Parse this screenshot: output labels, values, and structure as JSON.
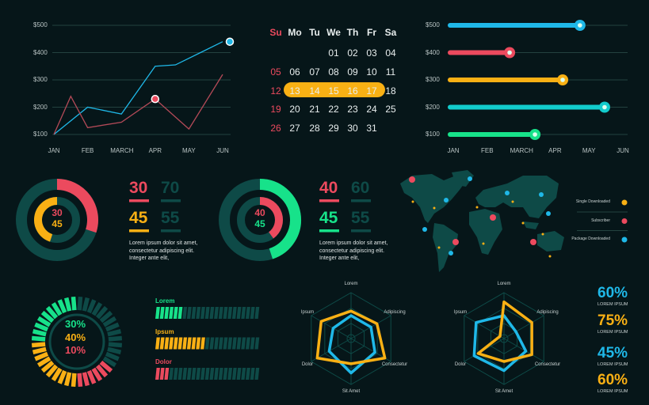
{
  "colors": {
    "bg": "#061619",
    "red": "#ec4a5e",
    "yellow": "#f9b014",
    "blue": "#1fb8e8",
    "teal": "#12cccc",
    "green": "#17e28a",
    "dark": "#0e4a47",
    "grid": "#23423f"
  },
  "line_chart": {
    "y_ticks": [
      "$500",
      "$400",
      "$300",
      "$200",
      "$100"
    ],
    "x_ticks": [
      "JAN",
      "FEB",
      "MARCH",
      "APR",
      "MAY",
      "JUN"
    ],
    "series": [
      {
        "name": "blue",
        "color": "#1fb8e8",
        "x": [
          0,
          1,
          2,
          3,
          3.6,
          5
        ],
        "y": [
          100,
          200,
          175,
          350,
          355,
          440
        ]
      },
      {
        "name": "red",
        "color": "#b44a58",
        "x": [
          0,
          0.5,
          1,
          2,
          3,
          4,
          5
        ],
        "y": [
          100,
          240,
          125,
          145,
          230,
          120,
          320
        ]
      }
    ]
  },
  "calendar": {
    "weekdays": [
      "Su",
      "Mo",
      "Tu",
      "We",
      "Th",
      "Fr",
      "Sa"
    ],
    "weeks": [
      [
        "",
        "",
        "",
        "01",
        "02",
        "03",
        "04"
      ],
      [
        "05",
        "06",
        "07",
        "08",
        "09",
        "10",
        "11"
      ],
      [
        "12",
        "13",
        "14",
        "15",
        "16",
        "17",
        "18"
      ],
      [
        "19",
        "20",
        "21",
        "22",
        "23",
        "24",
        "25"
      ],
      [
        "26",
        "27",
        "28",
        "29",
        "30",
        "31",
        ""
      ]
    ],
    "highlight": [
      "13",
      "14",
      "15",
      "16",
      "17"
    ]
  },
  "slider_chart": {
    "y_ticks": [
      "$500",
      "$400",
      "$300",
      "$200",
      "$100"
    ],
    "x_ticks": [
      "JAN",
      "FEB",
      "MARCH",
      "APR",
      "MAY",
      "JUN"
    ],
    "bars": [
      {
        "label": "$500",
        "color": "#1fb8e8",
        "fraction": 0.735
      },
      {
        "label": "$400",
        "color": "#ec4a5e",
        "fraction": 0.344
      },
      {
        "label": "$300",
        "color": "#f9b014",
        "fraction": 0.639
      },
      {
        "label": "$200",
        "color": "#12cccc",
        "fraction": 0.872
      },
      {
        "label": "$100",
        "color": "#17e28a",
        "fraction": 0.485
      }
    ]
  },
  "donut1": {
    "outer": {
      "value": 30,
      "color": "#ec4a5e"
    },
    "inner": {
      "value": 45,
      "color": "#f9b014"
    },
    "center": [
      "30",
      "45"
    ],
    "stats": [
      {
        "v": "30",
        "c": "#ec4a5e"
      },
      {
        "v": "70",
        "c": "#0e4a47"
      },
      {
        "v": "45",
        "c": "#f9b014"
      },
      {
        "v": "55",
        "c": "#0e4a47"
      }
    ],
    "text": [
      "Lorem ipsum dolor sit amet,",
      "consectetur adipiscing elit.",
      "Integer ante elit,"
    ]
  },
  "donut2": {
    "outer": {
      "value": 45,
      "color": "#17e28a"
    },
    "inner": {
      "value": 40,
      "color": "#ec4a5e"
    },
    "center": [
      "40",
      "45"
    ],
    "stats": [
      {
        "v": "40",
        "c": "#ec4a5e"
      },
      {
        "v": "60",
        "c": "#0e4a47"
      },
      {
        "v": "45",
        "c": "#17e28a"
      },
      {
        "v": "55",
        "c": "#0e4a47"
      }
    ],
    "text": [
      "Lorem ipsum dolor sit amet,",
      "consectetur adipiscing elit.",
      "Integer ante elit,"
    ]
  },
  "map": {
    "legend": [
      {
        "label": "Single Downloaded",
        "color": "#f9b014"
      },
      {
        "label": "Subscriber",
        "color": "#ec4a5e"
      },
      {
        "label": "Package Downloaded",
        "color": "#1fb8e8"
      }
    ]
  },
  "segment_ring": {
    "values": [
      {
        "v": "30%",
        "c": "#17e28a"
      },
      {
        "v": "40%",
        "c": "#f9b014"
      },
      {
        "v": "10%",
        "c": "#ec4a5e"
      }
    ]
  },
  "progress": [
    {
      "label": "Lorem",
      "color": "#17e28a",
      "filled": 6,
      "total": 23
    },
    {
      "label": "Ipsum",
      "color": "#f9b014",
      "filled": 11,
      "total": 23
    },
    {
      "label": "Dolor",
      "color": "#ec4a5e",
      "filled": 3,
      "total": 23
    }
  ],
  "radar_axes": [
    "Lorem",
    "Adipiscing",
    "Consectetur",
    "Sit Amet",
    "Dolor",
    "Ipsum"
  ],
  "radars": [
    {
      "yellow": [
        0.6,
        0.65,
        0.85,
        0.55,
        0.85,
        0.75
      ],
      "blue": [
        0.5,
        0.5,
        0.6,
        0.75,
        0.55,
        0.45
      ]
    },
    {
      "yellow": [
        0.8,
        0.7,
        0.7,
        0.5,
        0.65,
        0.1
      ],
      "blue": [
        0.5,
        0.3,
        0.55,
        0.7,
        0.75,
        0.7
      ]
    }
  ],
  "kpis": [
    {
      "v": "60%",
      "c": "#1fb8e8",
      "l": "LOREM IPSUM"
    },
    {
      "v": "75%",
      "c": "#f9b014",
      "l": "LOREM IPSUM"
    },
    {
      "v": "45%",
      "c": "#1fb8e8",
      "l": "LOREM IPSUM"
    },
    {
      "v": "60%",
      "c": "#f9b014",
      "l": "LOREM IPSUM"
    }
  ]
}
